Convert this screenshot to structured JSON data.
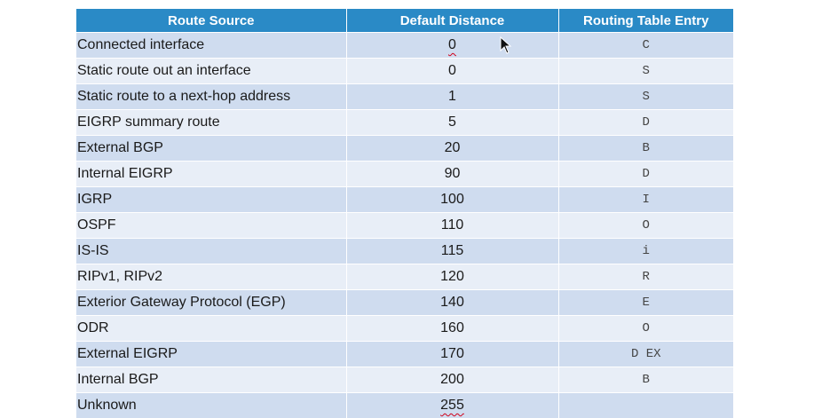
{
  "table": {
    "headers": [
      "Route Source",
      "Default Distance",
      "Routing Table Entry"
    ],
    "rows": [
      {
        "source": "Connected interface",
        "distance": "0",
        "entry": "C"
      },
      {
        "source": "Static route out an interface",
        "distance": "0",
        "entry": "S"
      },
      {
        "source": "Static route to a next-hop address",
        "distance": "1",
        "entry": "S"
      },
      {
        "source": "EIGRP summary route",
        "distance": "5",
        "entry": "D"
      },
      {
        "source": "External BGP",
        "distance": "20",
        "entry": "B"
      },
      {
        "source": "Internal EIGRP",
        "distance": "90",
        "entry": "D"
      },
      {
        "source": "IGRP",
        "distance": "100",
        "entry": "I"
      },
      {
        "source": "OSPF",
        "distance": "110",
        "entry": "O"
      },
      {
        "source": "IS-IS",
        "distance": "115",
        "entry": "i"
      },
      {
        "source": "RIPv1, RIPv2",
        "distance": "120",
        "entry": "R"
      },
      {
        "source": "Exterior Gateway Protocol (EGP)",
        "distance": "140",
        "entry": "E"
      },
      {
        "source": "ODR",
        "distance": "160",
        "entry": "O"
      },
      {
        "source": "External EIGRP",
        "distance": "170",
        "entry": "D EX"
      },
      {
        "source": "Internal BGP",
        "distance": "200",
        "entry": "B"
      },
      {
        "source": "Unknown",
        "distance": "255",
        "entry": ""
      }
    ]
  },
  "icons": {
    "cursor": "mouse-pointer-icon"
  },
  "colors": {
    "header_bg": "#2a8ac6",
    "row_odd": "#cfdcef",
    "row_even": "#e8eef7",
    "annotation_red": "#d0021b"
  }
}
